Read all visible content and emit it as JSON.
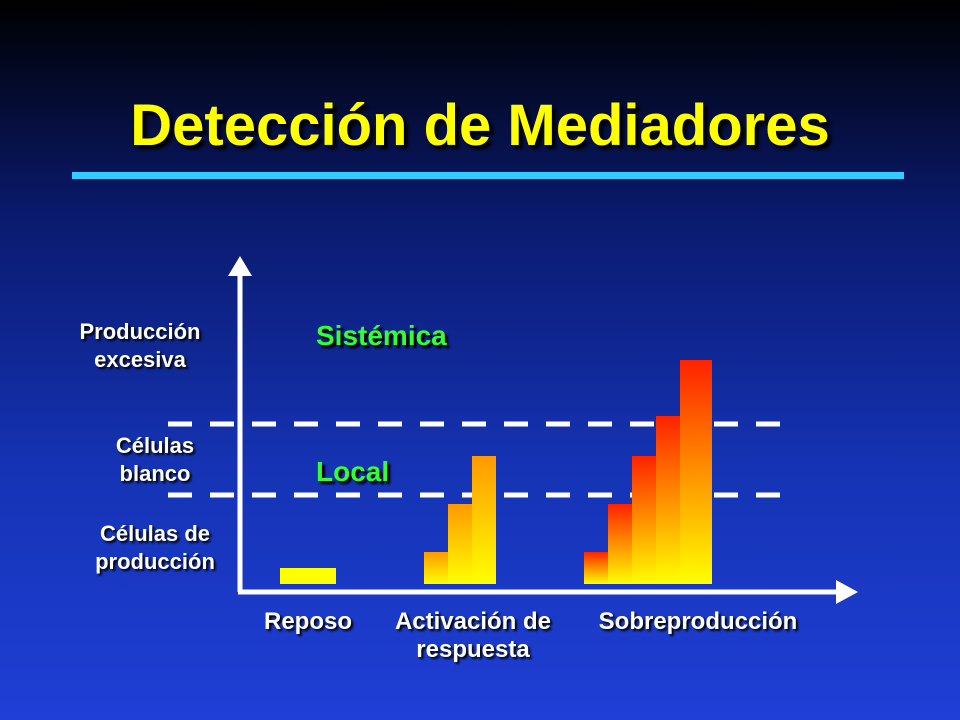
{
  "title": "Detección de Mediadores",
  "levels": {
    "excess": [
      "Producción",
      "excesiva"
    ],
    "target": [
      "Células",
      "blanco"
    ],
    "production": [
      "Células de",
      "producción"
    ]
  },
  "zones": {
    "systemic": "Sistémica",
    "local": "Local"
  },
  "categories": {
    "rest": "Reposo",
    "activation": [
      "Activación de",
      "respuesta"
    ],
    "overproduction": "Sobreproducción"
  },
  "colors": {
    "title": "#ffff00",
    "rule": "#33ccff",
    "zone_text": "#33ff33",
    "bar_top_hot": "#ff2200",
    "bar_top_warm": "#ff9900",
    "bar_bottom": "#ffff00",
    "axis": "#ffffff"
  }
}
